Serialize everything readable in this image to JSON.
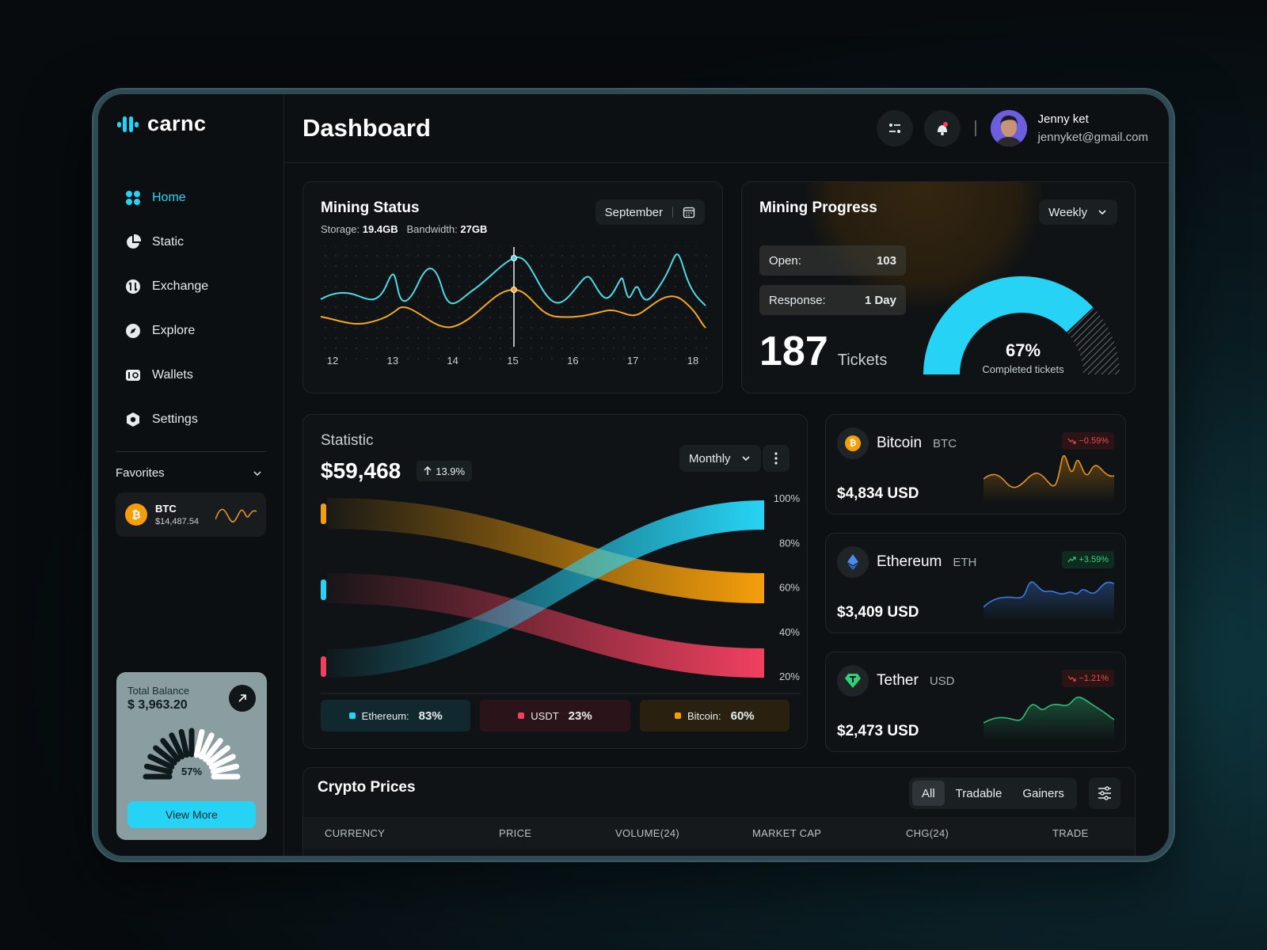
{
  "app": {
    "name": "carnc"
  },
  "sidebar": {
    "items": [
      {
        "label": "Home",
        "icon": "home-grid-icon",
        "active": true
      },
      {
        "label": "Static",
        "icon": "pie-chart-icon",
        "active": false
      },
      {
        "label": "Exchange",
        "icon": "exchange-icon",
        "active": false
      },
      {
        "label": "Explore",
        "icon": "compass-icon",
        "active": false
      },
      {
        "label": "Wallets",
        "icon": "wallet-icon",
        "active": false
      },
      {
        "label": "Settings",
        "icon": "gear-icon",
        "active": false
      }
    ],
    "favorites": {
      "title": "Favorites",
      "items": [
        {
          "symbol": "BTC",
          "value": "$14,487.54"
        }
      ]
    },
    "balance": {
      "label": "Total Balance",
      "value": "$ 3,963.20",
      "percent": "57%",
      "percent_value": 57,
      "button": "View More"
    }
  },
  "header": {
    "title": "Dashboard",
    "user": {
      "name": "Jenny ket",
      "email": "jennyket@gmail.com"
    }
  },
  "mining_status": {
    "title": "Mining Status",
    "storage_label": "Storage:",
    "storage_value": "19.4GB",
    "bandwidth_label": "Bandwidth:",
    "bandwidth_value": "27GB",
    "month": "September",
    "x_labels": [
      "12",
      "13",
      "14",
      "15",
      "16",
      "17",
      "18"
    ]
  },
  "mining_progress": {
    "title": "Mining Progress",
    "period": "Weekly",
    "open_label": "Open:",
    "open_value": "103",
    "response_label": "Response:",
    "response_value": "1 Day",
    "tickets_value": "187",
    "tickets_label": "Tickets",
    "completed_pct": "67%",
    "completed_value": 67,
    "completed_label": "Completed tickets"
  },
  "statistic": {
    "title": "Statistic",
    "value": "$59,468",
    "change": "13.9%",
    "period": "Monthly",
    "y_labels": [
      "100%",
      "80%",
      "60%",
      "40%",
      "20%"
    ],
    "legend": [
      {
        "name": "Ethereum:",
        "value": "83%",
        "color": "#27d3f5"
      },
      {
        "name": "USDT",
        "value": "23%",
        "color": "#f0405f"
      },
      {
        "name": "Bitcoin:",
        "value": "60%",
        "color": "#f59e0b"
      }
    ]
  },
  "coins": [
    {
      "name": "Bitcoin",
      "symbol": "BTC",
      "change": "−0.59%",
      "trend": "down",
      "price": "$4,834 USD",
      "color": "#f59e0b"
    },
    {
      "name": "Ethereum",
      "symbol": "ETH",
      "change": "+3.59%",
      "trend": "up",
      "price": "$3,409 USD",
      "color": "#3b7ae0"
    },
    {
      "name": "Tether",
      "symbol": "USD",
      "change": "−1.21%",
      "trend": "down",
      "price": "$2,473 USD",
      "color": "#2fbf7a"
    }
  ],
  "crypto_prices": {
    "title": "Crypto Prices",
    "tabs": [
      "All",
      "Tradable",
      "Gainers"
    ],
    "columns": [
      "CURRENCY",
      "PRICE",
      "VOLUME(24)",
      "MARKET CAP",
      "CHG(24)",
      "TRADE"
    ]
  }
}
